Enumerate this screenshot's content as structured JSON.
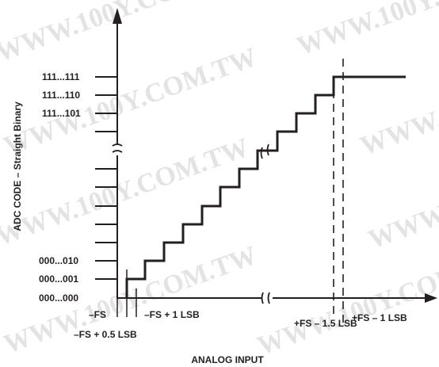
{
  "diagram": {
    "y_axis_label": "ADC CODE – Straight Binary",
    "x_axis_label": "ANALOG INPUT",
    "y_codes": [
      "111...111",
      "111...110",
      "111...101",
      "000...010",
      "000...001",
      "000...000"
    ],
    "x_labels": {
      "neg_fs": "–FS",
      "neg_fs_plus_half": "–FS + 0.5 LSB",
      "neg_fs_plus_one": "–FS + 1 LSB",
      "pos_fs_minus_1_5": "+FS – 1.5 LSB",
      "pos_fs_minus_one": "+FS – 1 LSB"
    },
    "watermark": "WWW.100Y.COM.TW",
    "colors": {
      "ink": "#231f20",
      "watermark": "#e3e3e3",
      "background": "#ffffff"
    }
  }
}
